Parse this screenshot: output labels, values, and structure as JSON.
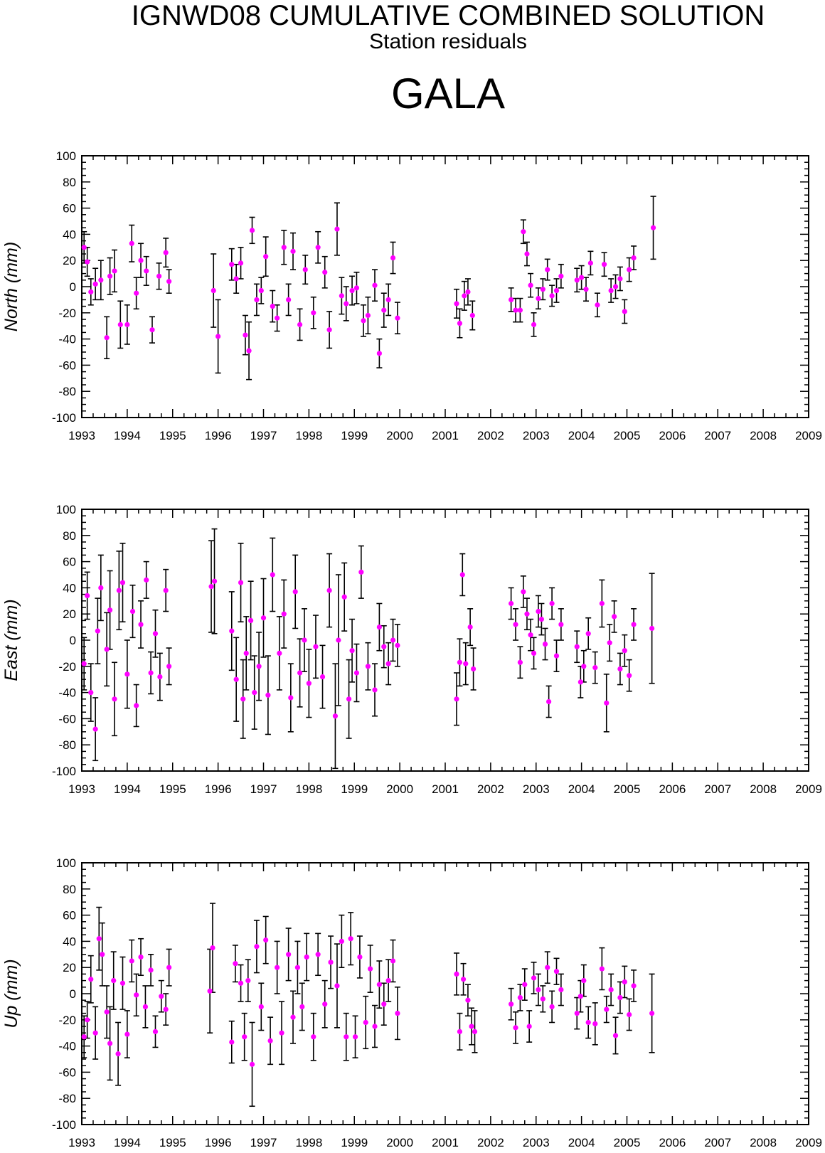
{
  "header": {
    "title": "IGNWD08 CUMULATIVE COMBINED SOLUTION",
    "subtitle": "Station residuals",
    "station": "GALA"
  },
  "colors": {
    "point": "#ff00ff",
    "errorbar": "#000000",
    "axis": "#000000"
  },
  "chart_data": [
    {
      "type": "scatter",
      "ylabel": "North (mm)",
      "xlim": [
        1993,
        2009
      ],
      "ylim": [
        -100,
        100
      ],
      "x_ticks": [
        "1993",
        "1994",
        "1995",
        "1996",
        "1997",
        "1998",
        "1999",
        "2000",
        "2001",
        "2002",
        "2003",
        "2004",
        "2005",
        "2006",
        "2007",
        "2008",
        "2009"
      ],
      "y_ticks": [
        "100",
        "80",
        "60",
        "40",
        "20",
        "0",
        "-20",
        "-40",
        "-60",
        "-80",
        "-100"
      ],
      "error_bars": true,
      "series": [
        {
          "x": [
            1993.05,
            1993.12,
            1993.2,
            1993.3,
            1993.42,
            1993.55,
            1993.62,
            1993.72,
            1993.85,
            1994.0,
            1994.1,
            1994.2,
            1994.3,
            1994.42,
            1994.55,
            1994.7,
            1994.85,
            1994.92,
            1995.9,
            1996.0,
            1996.3,
            1996.4,
            1996.5,
            1996.6,
            1996.68,
            1996.75,
            1996.85,
            1996.95,
            1997.05,
            1997.2,
            1997.3,
            1997.45,
            1997.55,
            1997.65,
            1997.8,
            1997.92,
            1998.1,
            1998.2,
            1998.35,
            1998.45,
            1998.62,
            1998.72,
            1998.82,
            1998.95,
            1999.05,
            1999.2,
            1999.3,
            1999.45,
            1999.55,
            1999.65,
            1999.75,
            1999.85,
            1999.95,
            2001.25,
            2001.32,
            2001.42,
            2001.5,
            2001.6,
            2002.45,
            2002.55,
            2002.65,
            2002.72,
            2002.8,
            2002.88,
            2002.95,
            2003.05,
            2003.15,
            2003.25,
            2003.35,
            2003.45,
            2003.55,
            2003.9,
            2004.0,
            2004.1,
            2004.2,
            2004.35,
            2004.5,
            2004.65,
            2004.75,
            2004.85,
            2004.95,
            2005.05,
            2005.15,
            2005.58
          ],
          "y": [
            30,
            19,
            -4,
            2,
            5,
            -39,
            8,
            12,
            -29,
            -29,
            33,
            -5,
            20,
            12,
            -33,
            8,
            26,
            4,
            -3,
            -38,
            17,
            6,
            18,
            -37,
            -49,
            43,
            -10,
            -3,
            23,
            -15,
            -24,
            30,
            -10,
            27,
            -29,
            13,
            -20,
            30,
            11,
            -33,
            44,
            -7,
            -13,
            -3,
            -1,
            -26,
            -22,
            1,
            -51,
            -18,
            -10,
            22,
            -24,
            -13,
            -28,
            -7,
            -4,
            -22,
            -10,
            -18,
            -18,
            42,
            25,
            1,
            -29,
            -9,
            -2,
            13,
            -7,
            -3,
            8,
            5,
            7,
            -2,
            18,
            -14,
            17,
            -3,
            0,
            6,
            -19,
            13,
            22,
            45
          ],
          "err": [
            12,
            11,
            10,
            12,
            15,
            16,
            14,
            16,
            18,
            15,
            14,
            12,
            13,
            11,
            10,
            10,
            11,
            9,
            28,
            28,
            12,
            11,
            12,
            15,
            22,
            10,
            12,
            10,
            15,
            12,
            10,
            13,
            12,
            14,
            12,
            11,
            12,
            12,
            12,
            14,
            20,
            14,
            13,
            11,
            12,
            12,
            14,
            12,
            11,
            13,
            12,
            12,
            12,
            11,
            11,
            11,
            10,
            11,
            9,
            9,
            9,
            9,
            9,
            9,
            9,
            8,
            8,
            8,
            8,
            9,
            9,
            9,
            9,
            9,
            9,
            9,
            9,
            9,
            9,
            9,
            9,
            9,
            9,
            24
          ]
        }
      ]
    },
    {
      "type": "scatter",
      "ylabel": "East (mm)",
      "xlim": [
        1993,
        2009
      ],
      "ylim": [
        -100,
        100
      ],
      "x_ticks": [
        "1993",
        "1994",
        "1995",
        "1996",
        "1997",
        "1998",
        "1999",
        "2000",
        "2001",
        "2002",
        "2003",
        "2004",
        "2005",
        "2006",
        "2007",
        "2008",
        "2009"
      ],
      "y_ticks": [
        "100",
        "80",
        "60",
        "40",
        "20",
        "0",
        "-20",
        "-40",
        "-60",
        "-80",
        "-100"
      ],
      "error_bars": true,
      "series": [
        {
          "x": [
            1993.05,
            1993.12,
            1993.2,
            1993.3,
            1993.35,
            1993.42,
            1993.55,
            1993.62,
            1993.72,
            1993.82,
            1993.9,
            1994.0,
            1994.12,
            1994.2,
            1994.3,
            1994.42,
            1994.52,
            1994.62,
            1994.72,
            1994.85,
            1994.92,
            1995.85,
            1995.92,
            1996.3,
            1996.4,
            1996.5,
            1996.55,
            1996.62,
            1996.72,
            1996.8,
            1996.9,
            1997.0,
            1997.1,
            1997.2,
            1997.35,
            1997.45,
            1997.6,
            1997.7,
            1997.8,
            1997.9,
            1998.0,
            1998.15,
            1998.3,
            1998.45,
            1998.58,
            1998.65,
            1998.78,
            1998.88,
            1998.95,
            1999.05,
            1999.15,
            1999.3,
            1999.45,
            1999.55,
            1999.65,
            1999.75,
            1999.85,
            1999.95,
            2001.25,
            2001.32,
            2001.38,
            2001.45,
            2001.55,
            2001.62,
            2002.45,
            2002.55,
            2002.65,
            2002.72,
            2002.8,
            2002.88,
            2002.95,
            2003.05,
            2003.12,
            2003.2,
            2003.28,
            2003.35,
            2003.45,
            2003.55,
            2003.9,
            2003.98,
            2004.05,
            2004.15,
            2004.3,
            2004.45,
            2004.55,
            2004.62,
            2004.72,
            2004.85,
            2004.95,
            2005.05,
            2005.15,
            2005.55
          ],
          "y": [
            -18,
            34,
            -40,
            -68,
            7,
            40,
            -7,
            23,
            -45,
            38,
            44,
            -26,
            22,
            -50,
            12,
            46,
            -25,
            5,
            -28,
            38,
            -20,
            41,
            45,
            7,
            -30,
            44,
            -45,
            -10,
            15,
            -40,
            -20,
            17,
            -42,
            50,
            -10,
            20,
            -44,
            37,
            -25,
            0,
            -33,
            -5,
            -28,
            38,
            -58,
            0,
            33,
            -45,
            -8,
            -25,
            52,
            -20,
            -38,
            10,
            -5,
            -18,
            0,
            -4,
            -45,
            -17,
            50,
            -18,
            10,
            -22,
            28,
            12,
            -17,
            37,
            20,
            4,
            -10,
            22,
            16,
            -3,
            -47,
            28,
            -12,
            12,
            -5,
            -32,
            -20,
            5,
            -21,
            28,
            -48,
            -2,
            18,
            -22,
            -8,
            -27,
            12,
            9
          ],
          "err": [
            20,
            18,
            22,
            24,
            25,
            25,
            28,
            30,
            28,
            30,
            30,
            26,
            20,
            16,
            18,
            14,
            16,
            18,
            18,
            16,
            14,
            35,
            40,
            30,
            32,
            30,
            30,
            28,
            30,
            28,
            26,
            30,
            30,
            28,
            28,
            26,
            26,
            28,
            26,
            24,
            26,
            24,
            24,
            28,
            40,
            50,
            26,
            30,
            24,
            22,
            20,
            18,
            20,
            18,
            16,
            16,
            16,
            16,
            20,
            18,
            16,
            16,
            14,
            16,
            12,
            12,
            12,
            12,
            12,
            12,
            12,
            12,
            12,
            12,
            12,
            12,
            12,
            12,
            12,
            12,
            12,
            12,
            12,
            18,
            22,
            14,
            12,
            12,
            12,
            12,
            12,
            42
          ]
        }
      ]
    },
    {
      "type": "scatter",
      "ylabel": "Up (mm)",
      "xlim": [
        1993,
        2009
      ],
      "ylim": [
        -100,
        100
      ],
      "x_ticks": [
        "1993",
        "1994",
        "1995",
        "1996",
        "1997",
        "1998",
        "1999",
        "2000",
        "2001",
        "2002",
        "2003",
        "2004",
        "2005",
        "2006",
        "2007",
        "2008",
        "2009"
      ],
      "y_ticks": [
        "100",
        "80",
        "60",
        "40",
        "20",
        "0",
        "-20",
        "-40",
        "-60",
        "-80",
        "-100"
      ],
      "error_bars": true,
      "series": [
        {
          "x": [
            1993.05,
            1993.12,
            1993.2,
            1993.3,
            1993.38,
            1993.45,
            1993.55,
            1993.62,
            1993.7,
            1993.8,
            1993.9,
            1994.0,
            1994.1,
            1994.2,
            1994.3,
            1994.4,
            1994.52,
            1994.62,
            1994.75,
            1994.85,
            1994.92,
            1995.82,
            1995.88,
            1996.3,
            1996.38,
            1996.5,
            1996.58,
            1996.66,
            1996.75,
            1996.85,
            1996.95,
            1997.05,
            1997.15,
            1997.3,
            1997.4,
            1997.55,
            1997.65,
            1997.75,
            1997.85,
            1997.95,
            1998.1,
            1998.2,
            1998.35,
            1998.48,
            1998.62,
            1998.72,
            1998.82,
            1998.92,
            1999.02,
            1999.12,
            1999.25,
            1999.35,
            1999.45,
            1999.55,
            1999.65,
            1999.75,
            1999.85,
            1999.95,
            2001.25,
            2001.32,
            2001.4,
            2001.5,
            2001.58,
            2001.65,
            2002.45,
            2002.55,
            2002.65,
            2002.75,
            2002.85,
            2002.95,
            2003.05,
            2003.15,
            2003.25,
            2003.35,
            2003.45,
            2003.55,
            2003.9,
            2003.98,
            2004.05,
            2004.15,
            2004.3,
            2004.45,
            2004.55,
            2004.65,
            2004.75,
            2004.85,
            2004.95,
            2005.05,
            2005.15,
            2005.55
          ],
          "y": [
            -33,
            -20,
            11,
            -30,
            42,
            30,
            -14,
            -38,
            10,
            -46,
            8,
            -31,
            25,
            -1,
            28,
            -10,
            18,
            -29,
            -2,
            -12,
            20,
            2,
            35,
            -37,
            23,
            8,
            -33,
            10,
            -54,
            36,
            -10,
            41,
            -36,
            20,
            -30,
            30,
            -18,
            20,
            -10,
            28,
            -33,
            30,
            -8,
            24,
            6,
            40,
            -33,
            42,
            -33,
            28,
            -22,
            19,
            -25,
            7,
            -8,
            10,
            25,
            -15,
            15,
            -29,
            11,
            -5,
            -25,
            -29,
            -8,
            -26,
            -3,
            7,
            -25,
            12,
            3,
            -4,
            20,
            -10,
            17,
            3,
            -15,
            -2,
            10,
            -22,
            -23,
            19,
            -12,
            3,
            -32,
            -3,
            9,
            -16,
            6,
            -15
          ],
          "err": [
            16,
            14,
            18,
            20,
            24,
            24,
            20,
            28,
            22,
            24,
            20,
            18,
            16,
            16,
            14,
            16,
            12,
            12,
            12,
            12,
            14,
            32,
            34,
            16,
            14,
            14,
            18,
            16,
            32,
            20,
            18,
            18,
            18,
            20,
            24,
            20,
            20,
            20,
            18,
            18,
            18,
            16,
            18,
            20,
            32,
            20,
            18,
            20,
            16,
            16,
            20,
            18,
            16,
            18,
            16,
            16,
            16,
            20,
            16,
            14,
            12,
            12,
            14,
            16,
            12,
            12,
            10,
            12,
            12,
            12,
            12,
            10,
            12,
            12,
            10,
            12,
            12,
            12,
            12,
            12,
            16,
            16,
            10,
            12,
            14,
            12,
            12,
            12,
            12,
            30
          ]
        }
      ]
    }
  ]
}
